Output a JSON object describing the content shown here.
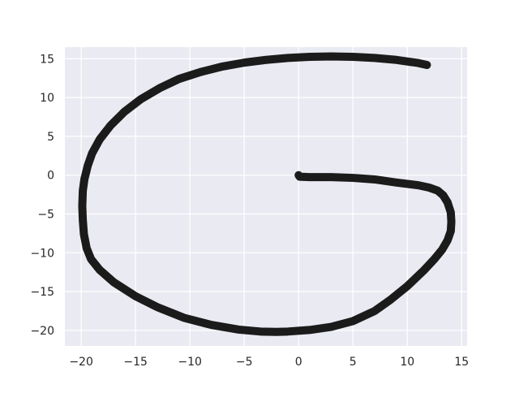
{
  "chart_data": {
    "type": "line",
    "title": "",
    "xlabel": "",
    "ylabel": "",
    "xlim": [
      -21.5,
      15.5
    ],
    "ylim": [
      -22,
      16.5
    ],
    "xticks": [
      -20,
      -15,
      -10,
      -5,
      0,
      5,
      10,
      15
    ],
    "yticks": [
      -20,
      -15,
      -10,
      -5,
      0,
      5,
      10,
      15
    ],
    "xtick_labels": [
      "−20",
      "−15",
      "−10",
      "−5",
      "0",
      "5",
      "10",
      "15"
    ],
    "ytick_labels": [
      "−20",
      "−15",
      "−10",
      "−5",
      "0",
      "5",
      "10",
      "15"
    ],
    "grid": true,
    "style": {
      "background": "#eaeaf2",
      "grid_color": "#ffffff",
      "line_color": "#1b1b1b"
    },
    "series": [
      {
        "x": [
          0.0,
          0.1,
          1.0,
          3.0,
          5.0,
          7.0,
          9.0,
          11.0,
          12.0,
          12.8,
          13.3,
          13.7,
          14.0,
          14.05,
          14.0,
          13.7,
          13.2,
          12.5,
          11.5,
          10.0,
          8.5,
          7.0,
          5.0,
          3.0,
          1.0,
          -1.0,
          -2.0,
          -3.5,
          -5.5,
          -8.0,
          -10.5,
          -13.0,
          -15.0,
          -17.0,
          -18.3,
          -19.1,
          -19.5,
          -19.75,
          -19.85,
          -19.9,
          -19.85,
          -19.7,
          -19.4,
          -19.0,
          -18.3,
          -17.3,
          -16.0,
          -14.5,
          -12.8,
          -11.0,
          -9.0,
          -7.0,
          -5.0,
          -3.0,
          -1.0,
          1.0,
          3.0,
          5.0,
          7.0,
          9.0,
          11.0,
          11.8
        ],
        "y": [
          0.0,
          -0.2,
          -0.25,
          -0.25,
          -0.35,
          -0.55,
          -0.95,
          -1.3,
          -1.6,
          -2.0,
          -2.6,
          -3.5,
          -4.8,
          -6.0,
          -7.2,
          -8.4,
          -9.6,
          -10.8,
          -12.3,
          -14.3,
          -16.0,
          -17.5,
          -18.8,
          -19.55,
          -19.95,
          -20.15,
          -20.2,
          -20.15,
          -19.9,
          -19.3,
          -18.4,
          -17.0,
          -15.6,
          -13.8,
          -12.2,
          -10.8,
          -9.4,
          -7.6,
          -5.8,
          -4.0,
          -2.0,
          -0.5,
          1.2,
          2.8,
          4.6,
          6.4,
          8.2,
          9.8,
          11.2,
          12.4,
          13.3,
          14.0,
          14.5,
          14.85,
          15.1,
          15.25,
          15.3,
          15.25,
          15.1,
          14.85,
          14.45,
          14.2
        ]
      }
    ]
  }
}
